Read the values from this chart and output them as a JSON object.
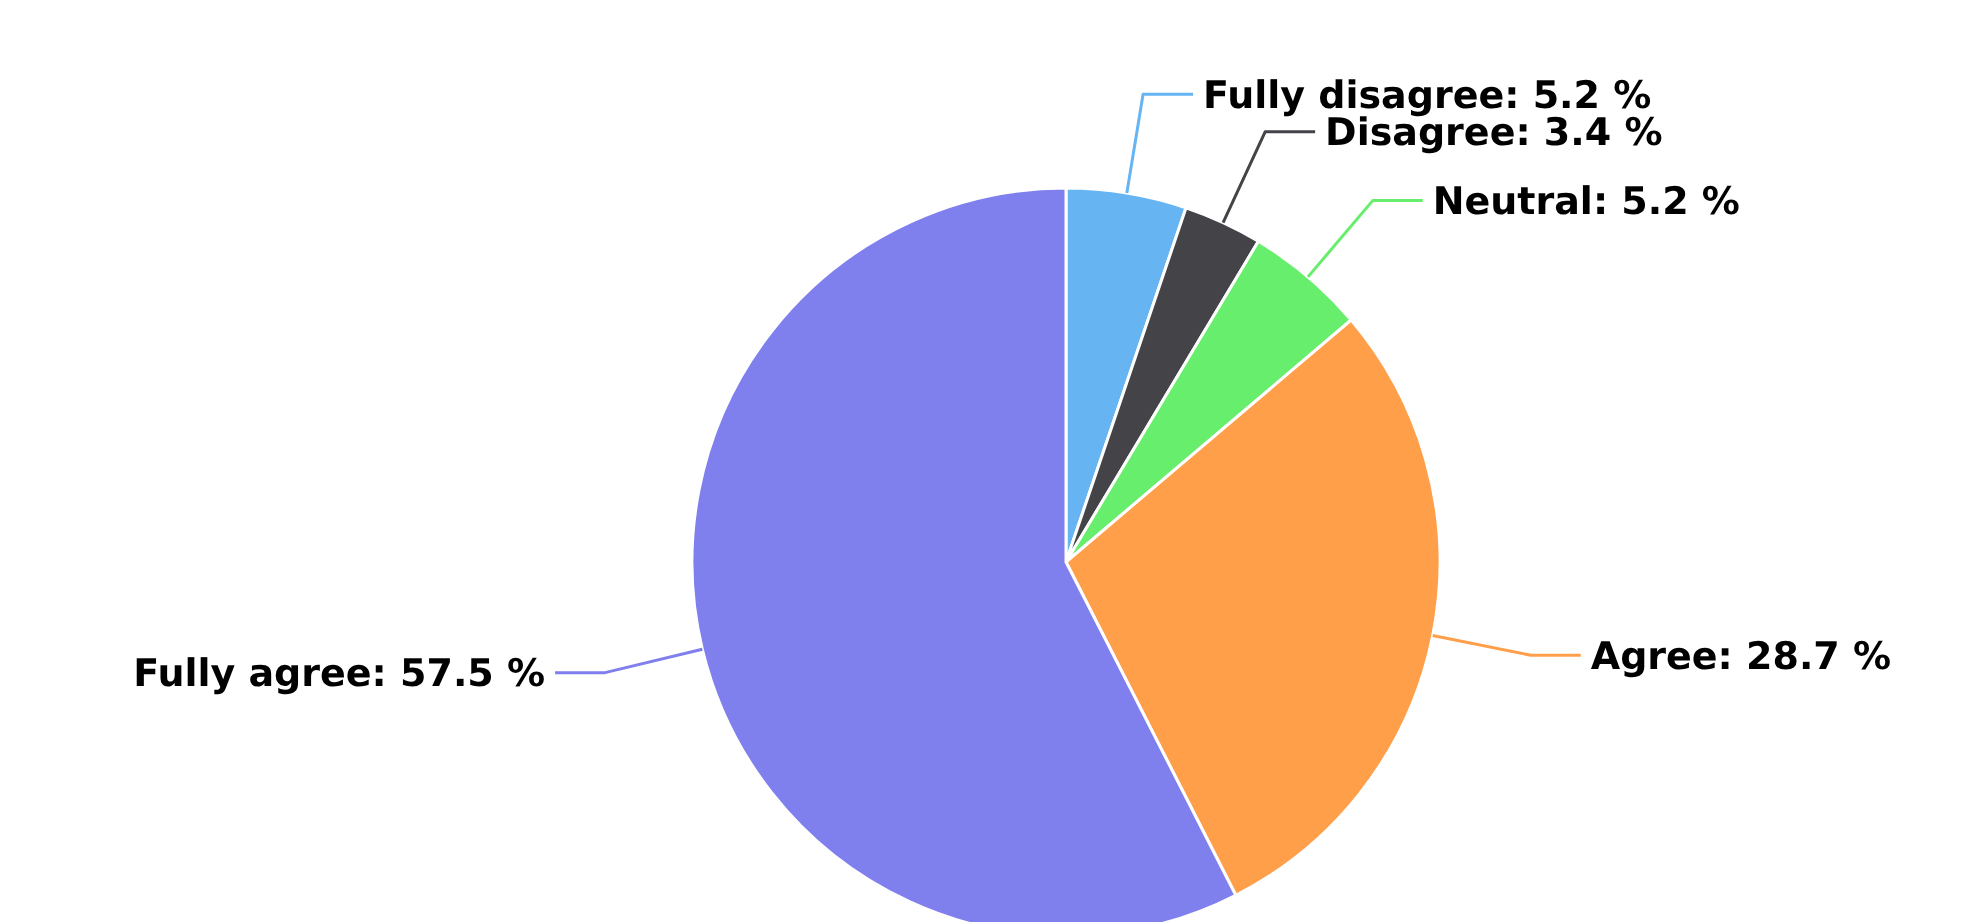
{
  "chart_data": {
    "type": "pie",
    "categories": [
      "Fully disagree",
      "Disagree",
      "Neutral",
      "Agree",
      "Fully agree"
    ],
    "values": [
      5.2,
      3.4,
      5.2,
      28.7,
      57.5
    ],
    "colors": [
      "#66b5f2",
      "#434348",
      "#66ee6c",
      "#ff9f4a",
      "#7f7fed"
    ],
    "value_labels": [
      "5.2 %",
      "3.4 %",
      "5.2 %",
      "28.7 %",
      "57.5 %"
    ]
  }
}
